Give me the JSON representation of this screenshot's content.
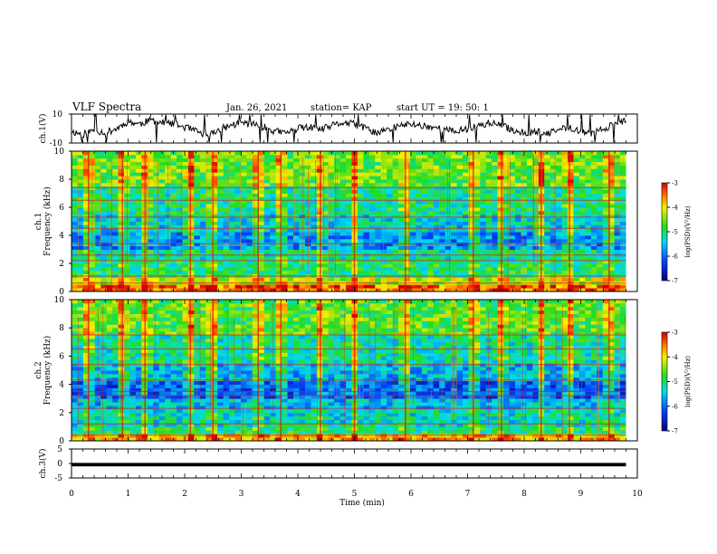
{
  "header": {
    "title": "VLF Spectra",
    "date": "Jan. 26, 2021",
    "station": "station= KAP",
    "start_ut": "start  UT =   19: 50: 1"
  },
  "chart_data": [
    {
      "type": "line",
      "panel": "ch1-waveform",
      "ylabel": "ch.1(V)",
      "yticks": [
        "10",
        "-10"
      ],
      "ylim": [
        -10,
        10
      ],
      "xlim": [
        0,
        10
      ],
      "data_end_min": 9.8,
      "series": [
        {
          "x": [
            0.0,
            0.2,
            0.4,
            0.6,
            0.8,
            1.0,
            1.2,
            1.4,
            1.6,
            1.8,
            2.0,
            2.2,
            2.4,
            2.6,
            2.8,
            3.0,
            3.2,
            3.4,
            3.6,
            3.8,
            4.0,
            4.2,
            4.4,
            4.6,
            4.8,
            5.0,
            5.2,
            5.4,
            5.6,
            5.8,
            6.0,
            6.2,
            6.4,
            6.6,
            6.8,
            7.0,
            7.2,
            7.4,
            7.6,
            7.8,
            8.0,
            8.2,
            8.4,
            8.6,
            8.8,
            9.0,
            9.2,
            9.4,
            9.6,
            9.8
          ],
          "y": [
            -2,
            -4,
            -1,
            -3,
            0,
            5,
            3,
            6,
            4,
            3,
            1,
            -2,
            -5,
            -1,
            2,
            4,
            3,
            1,
            -2,
            -3,
            0,
            1,
            -1,
            2,
            4,
            3,
            0,
            -3,
            -1,
            2,
            3,
            2,
            1,
            -1,
            -2,
            0,
            2,
            4,
            2,
            -1,
            -3,
            -2,
            -4,
            -1,
            1,
            -2,
            -4,
            0,
            3,
            5
          ]
        }
      ]
    },
    {
      "type": "heatmap",
      "panel": "ch1-spectrogram",
      "ylabel_top": "ch.1",
      "ylabel": "Frequency (kHz)",
      "yticks": [
        "0",
        "2",
        "4",
        "6",
        "8",
        "10"
      ],
      "ylim": [
        0,
        10
      ],
      "xlim": [
        0,
        10
      ],
      "colorbar_label": "log(PSD)(V²/Hz)",
      "colorbar_ticks": [
        "-3",
        "-4",
        "-5",
        "-6",
        "-7"
      ],
      "clim": [
        -7,
        -3
      ],
      "bands": [
        {
          "f_from": 0.0,
          "f_to": 0.5,
          "level": -3.5
        },
        {
          "f_from": 0.5,
          "f_to": 1.0,
          "level": -4.2
        },
        {
          "f_from": 1.0,
          "f_to": 2.2,
          "level": -5.0
        },
        {
          "f_from": 2.2,
          "f_to": 3.0,
          "level": -5.2
        },
        {
          "f_from": 3.0,
          "f_to": 4.2,
          "level": -5.8
        },
        {
          "f_from": 4.2,
          "f_to": 5.5,
          "level": -5.4
        },
        {
          "f_from": 5.5,
          "f_to": 7.5,
          "level": -5.1
        },
        {
          "f_from": 7.5,
          "f_to": 10.0,
          "level": -4.6
        }
      ],
      "line_freqs_khz": [
        0.6,
        1.1,
        2.2,
        2.6,
        3.4,
        4.5,
        5.3,
        6.5,
        7.4
      ],
      "bursts_min": [
        0.3,
        0.9,
        1.3,
        2.1,
        2.5,
        3.3,
        3.7,
        4.4,
        5.0,
        5.9,
        7.1,
        7.6,
        8.3,
        8.8,
        9.5
      ]
    },
    {
      "type": "heatmap",
      "panel": "ch2-spectrogram",
      "ylabel_top": "ch.2",
      "ylabel": "Frequency (kHz)",
      "yticks": [
        "0",
        "2",
        "4",
        "6",
        "8",
        "10"
      ],
      "ylim": [
        0,
        10
      ],
      "xlim": [
        0,
        10
      ],
      "colorbar_label": "log(PSD)(V²/Hz)",
      "colorbar_ticks": [
        "-3",
        "-4",
        "-5",
        "-6",
        "-7"
      ],
      "clim": [
        -7,
        -3
      ],
      "bands": [
        {
          "f_from": 0.0,
          "f_to": 0.5,
          "level": -3.8
        },
        {
          "f_from": 0.5,
          "f_to": 1.0,
          "level": -5.0
        },
        {
          "f_from": 1.0,
          "f_to": 2.2,
          "level": -5.3
        },
        {
          "f_from": 2.2,
          "f_to": 3.0,
          "level": -5.6
        },
        {
          "f_from": 3.0,
          "f_to": 4.2,
          "level": -6.1
        },
        {
          "f_from": 4.2,
          "f_to": 5.5,
          "level": -5.6
        },
        {
          "f_from": 5.5,
          "f_to": 7.5,
          "level": -5.2
        },
        {
          "f_from": 7.5,
          "f_to": 10.0,
          "level": -4.7
        }
      ],
      "line_freqs_khz": [
        0.4,
        1.2,
        2.3,
        3.2,
        3.5,
        4.3,
        5.4,
        6.5,
        7.5
      ],
      "bursts_min": [
        0.3,
        0.9,
        1.3,
        2.1,
        2.5,
        3.3,
        3.7,
        4.4,
        5.0,
        5.9,
        7.1,
        7.6,
        8.3,
        8.8,
        9.5
      ]
    },
    {
      "type": "line",
      "panel": "ch3-waveform",
      "ylabel": "ch.3(V)",
      "yticks": [
        "5",
        "0",
        "-5"
      ],
      "ylim": [
        -5,
        5
      ],
      "xlim": [
        0,
        10
      ],
      "data_end_min": 9.8,
      "series": [
        {
          "x": [
            0,
            9.8
          ],
          "y": [
            -0.4,
            -0.4
          ],
          "band_halfwidth": 0.6
        }
      ]
    }
  ],
  "xaxis": {
    "label": "Time (min)",
    "ticks": [
      "0",
      "1",
      "2",
      "3",
      "4",
      "5",
      "6",
      "7",
      "8",
      "9",
      "10"
    ]
  }
}
